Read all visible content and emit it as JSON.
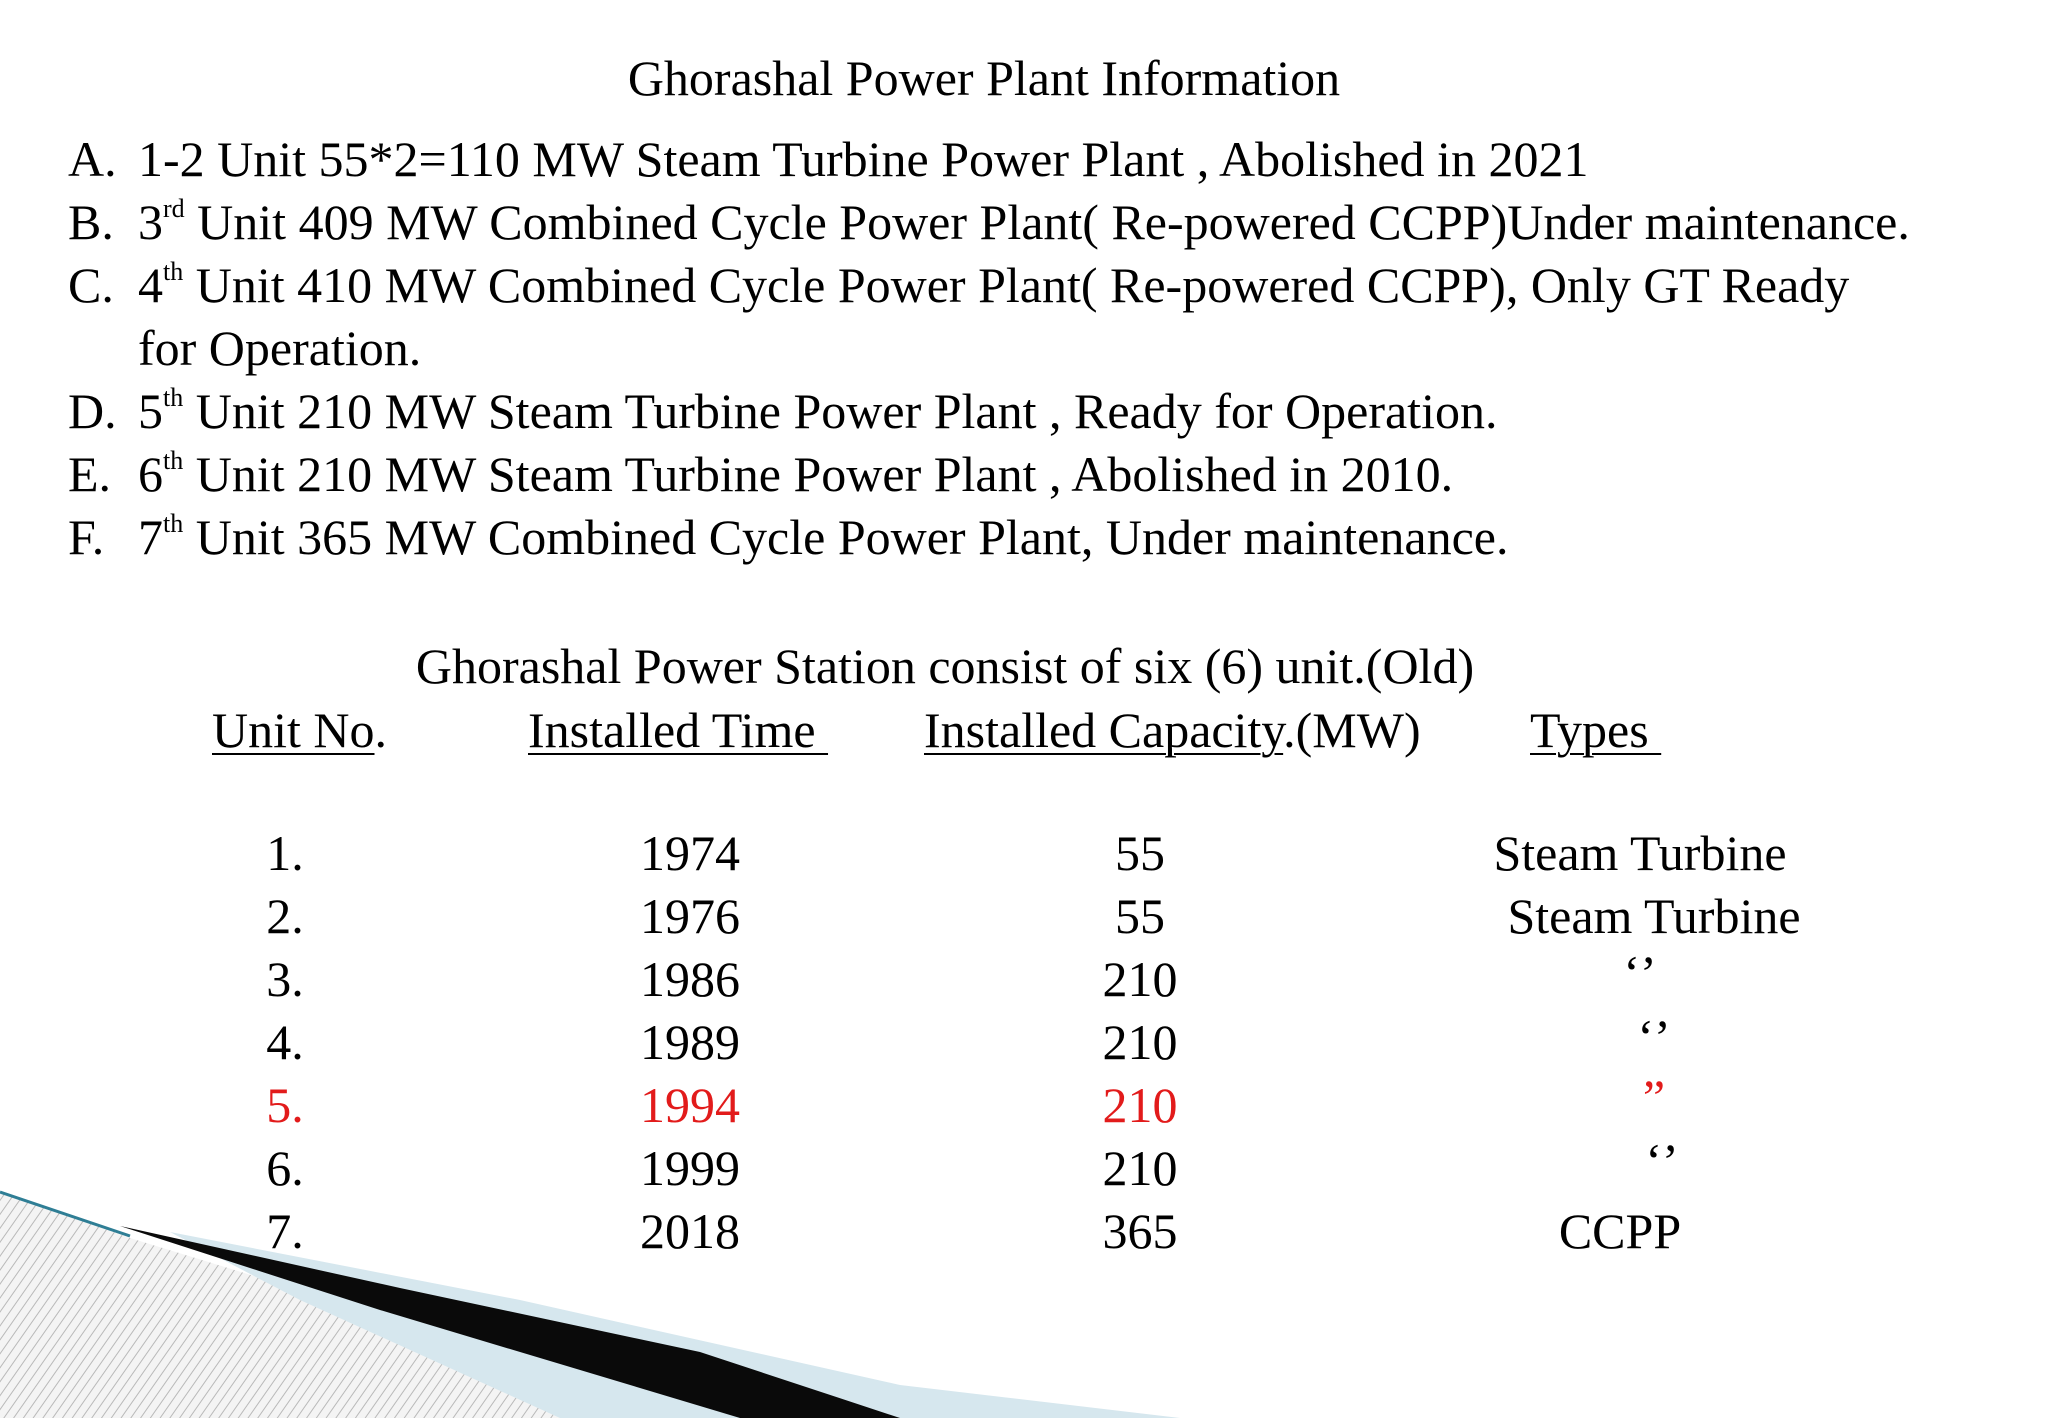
{
  "title": "Ghorashal Power Plant Information",
  "items": [
    {
      "marker": "A.",
      "pre": "1-2 Unit 55*2=110 MW Steam Turbine Power Plant , Abolished in 2021",
      "sup": "",
      "post": ""
    },
    {
      "marker": "B.",
      "pre": "3",
      "sup": "rd",
      "post": " Unit 409 MW Combined Cycle Power Plant( Re-powered CCPP)Under maintenance."
    },
    {
      "marker": "C.",
      "pre": "4",
      "sup": "th",
      "post": " Unit 410 MW Combined Cycle Power Plant( Re-powered CCPP), Only GT Ready for Operation."
    },
    {
      "marker": "D.",
      "pre": "5",
      "sup": "th",
      "post": " Unit 210 MW Steam Turbine Power Plant , Ready for Operation."
    },
    {
      "marker": "E.",
      "pre": "6",
      "sup": "th",
      "post": " Unit 210 MW Steam Turbine Power Plant , Abolished in 2010."
    },
    {
      "marker": "F.",
      "pre": "7",
      "sup": "th",
      "post": " Unit 365 MW Combined Cycle Power Plant, Under maintenance."
    }
  ],
  "table": {
    "caption": "Ghorashal  Power  Station consist of six (6) unit.(Old)",
    "headers": {
      "unit_no": "Unit No",
      "unit_no_suffix": ".",
      "installed_time": "Installed Time ",
      "installed_capacity": "Installed Capacity",
      "installed_capacity_suffix": ".(MW)",
      "types": "Types "
    },
    "rows": [
      {
        "unit": "1.",
        "year": "1974",
        "capacity": "55",
        "type": "Steam Turbine",
        "highlight": false
      },
      {
        "unit": "2.",
        "year": "1976",
        "capacity": "55",
        "type": "Steam Turbine",
        "highlight": false
      },
      {
        "unit": "3.",
        "year": "1986",
        "capacity": "210",
        "type": "‘’",
        "highlight": false
      },
      {
        "unit": "4.",
        "year": "1989",
        "capacity": "210",
        "type": "‘’",
        "highlight": false
      },
      {
        "unit": "5.",
        "year": "1994",
        "capacity": "210",
        "type": "”",
        "highlight": true
      },
      {
        "unit": "6.",
        "year": "1999",
        "capacity": "210",
        "type": "‘’",
        "highlight": false
      },
      {
        "unit": "7.",
        "year": "2018",
        "capacity": "365",
        "type": "CCPP",
        "highlight": false
      }
    ]
  },
  "colors": {
    "text": "#000000",
    "highlight": "#e21b1b",
    "decor_light": "#d6e7ee",
    "decor_dark": "#0a0a0a",
    "decor_teal": "#2f7e95"
  }
}
